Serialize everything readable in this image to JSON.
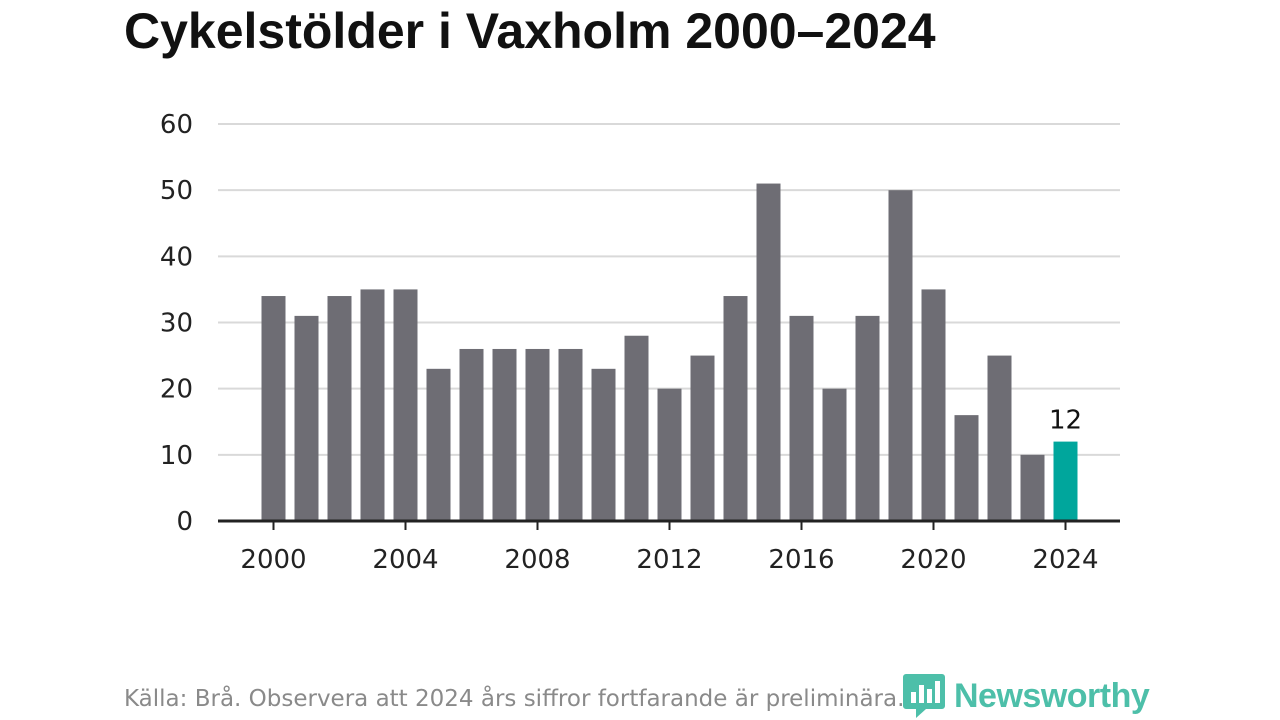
{
  "header": {
    "title": "Cykelstölder i Vaxholm 2000–2024"
  },
  "footer": {
    "source": "Källa: Brå. Observera att 2024 års siffror fortfarande är preliminära."
  },
  "brand": {
    "name": "Newsworthy",
    "icon": "newsworthy-logo-icon",
    "color": "#4dbfa9"
  },
  "colors": {
    "bar": "#6e6d74",
    "highlight": "#00a69c",
    "grid": "#d9d9d9",
    "axis": "#222222"
  },
  "chart_data": {
    "type": "bar",
    "title": "Cykelstölder i Vaxholm 2000–2024",
    "xlabel": "",
    "ylabel": "",
    "categories": [
      2000,
      2001,
      2002,
      2003,
      2004,
      2005,
      2006,
      2007,
      2008,
      2009,
      2010,
      2011,
      2012,
      2013,
      2014,
      2015,
      2016,
      2017,
      2018,
      2019,
      2020,
      2021,
      2022,
      2023,
      2024
    ],
    "values": [
      34,
      31,
      34,
      35,
      35,
      23,
      26,
      26,
      26,
      26,
      23,
      28,
      20,
      25,
      34,
      51,
      31,
      20,
      31,
      50,
      35,
      16,
      25,
      10,
      12
    ],
    "highlight_index": 24,
    "data_labels": [
      {
        "index": 24,
        "text": "12"
      }
    ],
    "ylim": [
      0,
      60
    ],
    "yticks": [
      "0",
      "10",
      "20",
      "30",
      "40",
      "50",
      "60"
    ],
    "xticks": [
      "2000",
      "2004",
      "2008",
      "2012",
      "2016",
      "2020",
      "2024"
    ],
    "grid": true,
    "legend": "none"
  }
}
